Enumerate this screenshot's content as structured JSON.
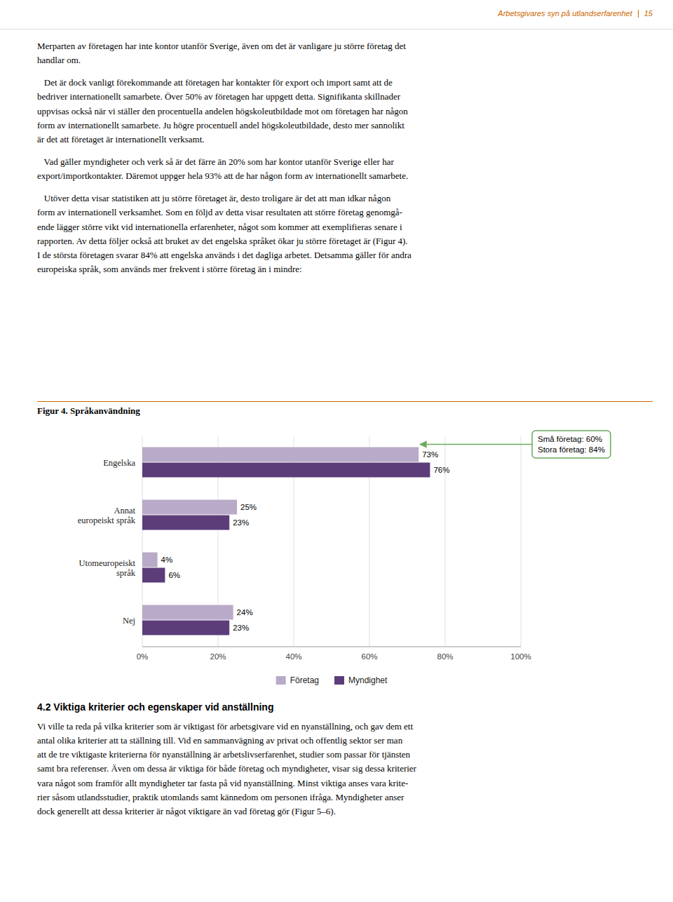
{
  "header_text": "Arbetsgivares syn på utlandserfarenhet",
  "page_number": "15",
  "body_text": [
    "Merparten av företagen har inte kontor utanför Sverige, även om det är vanligare ju större företag det",
    "handlar om.",
    "   Det är dock vanligt förekommande att företagen har kontakter för export och import samt att de\nbedriver internationellt samarbete. Över 50% av företagen har uppgett detta. Signifikanta skillnader\nuppvisas också när vi ställer den procentuella andelen högskoleutbildade mot om företagen har någon\nform av internationellt samarbete. Ju högre procentuell andel högskoleutbildade, desto mer sannolikt\när det att företaget är internationellt verksamt.",
    "   Vad gäller myndigheter och verk så är det färre än 20% som har kontor utanför Sverige eller har\nexport/importkontakter. Däremot uppger hela 93% att de har någon form av internationellt samarbete.",
    "   Utöver detta visar statistiken att ju större företaget är, desto troligare är det att man idkar någon\nform av internationell verksamhet. Som en följd av detta visar resultaten att större företag genomgå-\nende lägger större vikt vid internationella erfarenheter, något som kommer att exemplifieras senare i\nrapporten. Av detta följer också att bruket av det engelska språket ökar ju större företaget är (Figur 4).\nI de största företagen svarar 84% att engelska används i det dagliga arbetet. Detsamma gäller för andra\neuropeiska språk, som används mer frekvent i större företag än i mindre:"
  ],
  "section_title": "4.2 Viktiga kriterier och egenskaper vid anställning",
  "section_text": "Vi ville ta reda på vilka kriterier som är viktigast för arbetsgivare vid en nyanställning, och gav dem ett\nantal olika kriterier att ta ställning till. Vid en sammanvägning av privat och offentlig sektor ser man\natt de tre viktigaste kriterierna för nyanställning är arbetslivserfarenhet, studier som passar för tjänsten\nsamt bra referenser. Även om dessa är viktiga för både företag och myndigheter, visar sig dessa kriterier\nvara något som framför allt myndigheter tar fasta på vid nyanställning. Minst viktiga anses vara krite-\nrier såsom utlandsstudier, praktik utomlands samt kännedom om personen ifråga. Myndigheter anser\ndock generellt att dessa kriterier är något viktigare än vad företag gör (Figur 5–6).",
  "chart_data": {
    "type": "bar",
    "orientation": "horizontal",
    "title": "Figur 4. Språkanvändning",
    "categories": [
      "Engelska",
      "Annat\neuropeiskt språk",
      "Utomeuropeiskt\nspråk",
      "Nej"
    ],
    "series": [
      {
        "name": "Företag",
        "color": "#b8aac8",
        "values": [
          73,
          25,
          4,
          24
        ],
        "value_labels": [
          "73%",
          "25%",
          "4%",
          "24%"
        ]
      },
      {
        "name": "Myndighet",
        "color": "#5c3d7a",
        "values": [
          76,
          23,
          6,
          23
        ],
        "value_labels": [
          "76%",
          "23%",
          "6%",
          "23%"
        ]
      }
    ],
    "xlim": [
      0,
      100
    ],
    "xticks": [
      {
        "value": 0,
        "label": "0%"
      },
      {
        "value": 20,
        "label": "20%"
      },
      {
        "value": 40,
        "label": "40%"
      },
      {
        "value": 60,
        "label": "60%"
      },
      {
        "value": 80,
        "label": "80%"
      },
      {
        "value": 100,
        "label": "100%"
      }
    ],
    "grid": true,
    "legend": "bottom",
    "data_labels": true,
    "annotations": [
      {
        "text": "Små företag: 60%\nStora företag: 84%",
        "color": "#6aaa5e"
      }
    ]
  }
}
